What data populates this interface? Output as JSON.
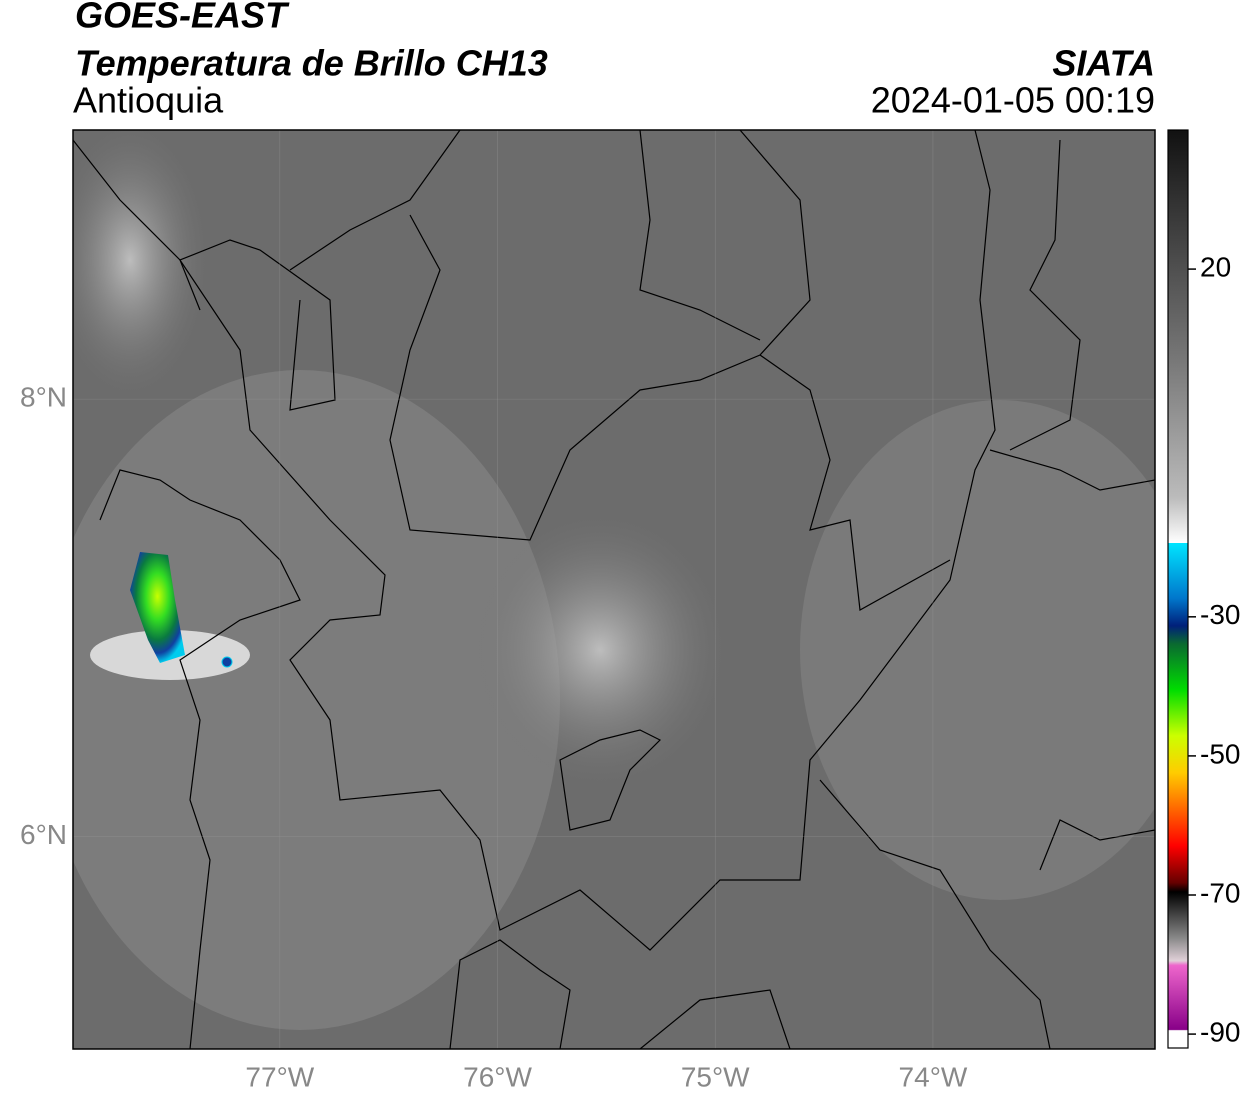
{
  "title": "GOES-EAST",
  "subtitle": "Temperatura de Brillo CH13",
  "region": "Antioquia",
  "source": "SIATA",
  "timestamp": "2024-01-05 00:19",
  "map": {
    "xlim": [
      -77.95,
      -72.98
    ],
    "ylim": [
      5.03,
      9.23
    ],
    "xticks": [
      {
        "value": -77,
        "label": "77°W"
      },
      {
        "value": -76,
        "label": "76°W"
      },
      {
        "value": -75,
        "label": "75°W"
      },
      {
        "value": -74,
        "label": "74°W"
      }
    ],
    "yticks": [
      {
        "value": 6,
        "label": "6°N"
      },
      {
        "value": 8,
        "label": "8°N"
      }
    ],
    "grid": true
  },
  "colorbar": {
    "lim": [
      -92,
      40
    ],
    "ticks": [
      20,
      -30,
      -50,
      -70,
      -90
    ]
  }
}
